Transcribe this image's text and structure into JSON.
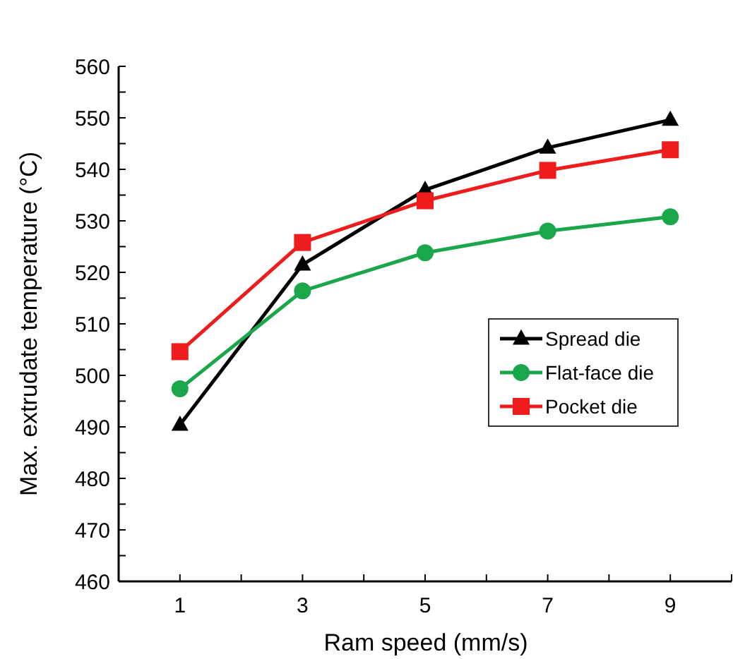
{
  "chart_data": {
    "type": "line",
    "xlabel": "Ram speed (mm/s)",
    "ylabel": "Max. extrudate temperature (°C)",
    "x": [
      1,
      3,
      5,
      7,
      9
    ],
    "xlim": [
      0,
      10
    ],
    "xticks": [
      {
        "value": 0,
        "label": null
      },
      1,
      {
        "value": 2,
        "label": null
      },
      3,
      {
        "value": 4,
        "label": null
      },
      5,
      {
        "value": 6,
        "label": null
      },
      7,
      {
        "value": 8,
        "label": null
      },
      9,
      {
        "value": 10,
        "label": null
      }
    ],
    "ylim": [
      460,
      560
    ],
    "yticks": [
      460,
      {
        "value": 465,
        "label": null
      },
      470,
      {
        "value": 475,
        "label": null
      },
      480,
      {
        "value": 485,
        "label": null
      },
      490,
      {
        "value": 495,
        "label": null
      },
      500,
      {
        "value": 505,
        "label": null
      },
      510,
      {
        "value": 515,
        "label": null
      },
      520,
      {
        "value": 525,
        "label": null
      },
      530,
      {
        "value": 535,
        "label": null
      },
      540,
      {
        "value": 545,
        "label": null
      },
      550,
      {
        "value": 555,
        "label": null
      },
      560
    ],
    "grid": false,
    "legend": "right",
    "line_style": "solid",
    "series": [
      {
        "name": "Spread die",
        "color": "#000000",
        "marker": "triangle",
        "values": [
          490.4,
          521.5,
          536,
          544.2,
          549.6
        ]
      },
      {
        "name": "Flat-face die",
        "color": "#1aa64a",
        "marker": "circle",
        "values": [
          497.4,
          516.4,
          523.8,
          528,
          530.8
        ]
      },
      {
        "name": "Pocket die",
        "color": "#ee1c1c",
        "marker": "square",
        "values": [
          504.6,
          525.8,
          533.9,
          539.8,
          543.8
        ]
      }
    ]
  }
}
